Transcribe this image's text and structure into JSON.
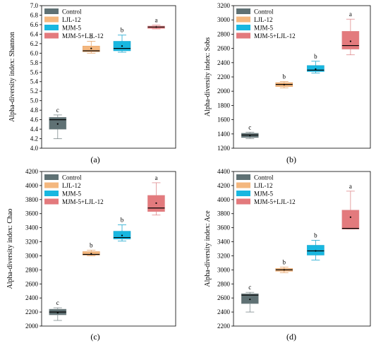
{
  "colors": {
    "Control": "#5f7174",
    "LJL-12": "#f4b77e",
    "MJM-5": "#18b7e0",
    "MJM-5+LJL-12": "#e37a7d",
    "whisker": {
      "Control": "#7f8b8d",
      "LJL-12": "#e7a56a",
      "MJM-5": "#1aa7cf",
      "MJM-5+LJL-12": "#df8b8e"
    }
  },
  "chart_data": [
    {
      "type": "box",
      "panel_label": "(a)",
      "ylabel": "Alpha-diversity index: Shannon",
      "ylim": [
        4.0,
        7.0
      ],
      "yticks": [
        "4.0",
        "4.2",
        "4.4",
        "4.6",
        "4.8",
        "5.0",
        "5.2",
        "5.4",
        "5.6",
        "5.8",
        "6.0",
        "6.2",
        "6.4",
        "6.6",
        "6.8",
        "7.0"
      ],
      "yticks_values": [
        4.0,
        4.2,
        4.4,
        4.6,
        4.8,
        5.0,
        5.2,
        5.4,
        5.6,
        5.8,
        6.0,
        6.2,
        6.4,
        6.6,
        6.8,
        7.0
      ],
      "legend": [
        "Control",
        "LJL-12",
        "MJM-5",
        "MJM-5+LJL-12"
      ],
      "series": [
        {
          "name": "Control",
          "min": 4.2,
          "q1": 4.4,
          "median": 4.6,
          "q3": 4.65,
          "max": 4.7,
          "mean": 4.51,
          "sig": "c"
        },
        {
          "name": "LJL-12",
          "min": 6.0,
          "q1": 6.03,
          "median": 6.05,
          "q3": 6.15,
          "max": 6.25,
          "mean": 6.1,
          "sig": "b"
        },
        {
          "name": "MJM-5",
          "min": 6.02,
          "q1": 6.05,
          "median": 6.1,
          "q3": 6.25,
          "max": 6.38,
          "mean": 6.15,
          "sig": "b"
        },
        {
          "name": "MJM-5+LJL-12",
          "min": 6.51,
          "q1": 6.52,
          "median": 6.55,
          "q3": 6.57,
          "max": 6.59,
          "mean": 6.55,
          "sig": "a"
        }
      ]
    },
    {
      "type": "box",
      "panel_label": "(b)",
      "ylabel": "Alpha-diversity index: Sobs",
      "ylim": [
        1200,
        3200
      ],
      "yticks": [
        "1200",
        "1400",
        "1600",
        "1800",
        "2000",
        "2200",
        "2400",
        "2600",
        "2800",
        "3000",
        "3200"
      ],
      "yticks_values": [
        1200,
        1400,
        1600,
        1800,
        2000,
        2200,
        2400,
        2600,
        2800,
        3000,
        3200
      ],
      "legend": [
        "Control",
        "LJL-12",
        "MJM-5",
        "MJM-5+LJL-12"
      ],
      "series": [
        {
          "name": "Control",
          "min": 1335,
          "q1": 1350,
          "median": 1385,
          "q3": 1410,
          "max": 1425,
          "mean": 1378,
          "sig": "c"
        },
        {
          "name": "LJL-12",
          "min": 2045,
          "q1": 2065,
          "median": 2095,
          "q3": 2120,
          "max": 2135,
          "mean": 2092,
          "sig": "b"
        },
        {
          "name": "MJM-5",
          "min": 2255,
          "q1": 2275,
          "median": 2295,
          "q3": 2360,
          "max": 2420,
          "mean": 2310,
          "sig": "b"
        },
        {
          "name": "MJM-5+LJL-12",
          "min": 2510,
          "q1": 2590,
          "median": 2640,
          "q3": 2840,
          "max": 3010,
          "mean": 2700,
          "sig": "a"
        }
      ]
    },
    {
      "type": "box",
      "panel_label": "(c)",
      "ylabel": "Alpha-diversity index: Chao",
      "ylim": [
        2000,
        4200
      ],
      "yticks": [
        "2000",
        "2200",
        "2400",
        "2600",
        "2800",
        "3000",
        "3200",
        "3400",
        "3600",
        "3800",
        "4000",
        "4200"
      ],
      "yticks_values": [
        2000,
        2200,
        2400,
        2600,
        2800,
        3000,
        3200,
        3400,
        3600,
        3800,
        4000,
        4200
      ],
      "legend": [
        "Control",
        "LJL-12",
        "MJM-5",
        "MJM-5+LJL-12"
      ],
      "series": [
        {
          "name": "Control",
          "min": 2080,
          "q1": 2160,
          "median": 2200,
          "q3": 2240,
          "max": 2260,
          "mean": 2190,
          "sig": "c"
        },
        {
          "name": "LJL-12",
          "min": 3000,
          "q1": 3010,
          "median": 3020,
          "q3": 3060,
          "max": 3080,
          "mean": 3030,
          "sig": "b"
        },
        {
          "name": "MJM-5",
          "min": 3210,
          "q1": 3240,
          "median": 3260,
          "q3": 3350,
          "max": 3440,
          "mean": 3290,
          "sig": "b"
        },
        {
          "name": "MJM-5+LJL-12",
          "min": 3580,
          "q1": 3630,
          "median": 3680,
          "q3": 3860,
          "max": 4040,
          "mean": 3750,
          "sig": "a"
        }
      ]
    },
    {
      "type": "box",
      "panel_label": "(d)",
      "ylabel": "Alpha-diversity index: Ace",
      "ylim": [
        2200,
        4400
      ],
      "yticks": [
        "2200",
        "2400",
        "2600",
        "2800",
        "3000",
        "3200",
        "3400",
        "3600",
        "3800",
        "4000",
        "4200",
        "4400"
      ],
      "yticks_values": [
        2200,
        2400,
        2600,
        2800,
        3000,
        3200,
        3400,
        3600,
        3800,
        4000,
        4200,
        4400
      ],
      "legend": [
        "Control",
        "LJL-12",
        "MJM-5",
        "MJM-5+LJL-12"
      ],
      "series": [
        {
          "name": "Control",
          "min": 2400,
          "q1": 2520,
          "median": 2640,
          "q3": 2660,
          "max": 2680,
          "mean": 2580,
          "sig": "c"
        },
        {
          "name": "LJL-12",
          "min": 2960,
          "q1": 2980,
          "median": 3000,
          "q3": 3020,
          "max": 3040,
          "mean": 3000,
          "sig": "b"
        },
        {
          "name": "MJM-5",
          "min": 3140,
          "q1": 3210,
          "median": 3270,
          "q3": 3350,
          "max": 3420,
          "mean": 3270,
          "sig": "b"
        },
        {
          "name": "MJM-5+LJL-12",
          "min": 3580,
          "q1": 3580,
          "median": 3590,
          "q3": 3850,
          "max": 4120,
          "mean": 3750,
          "sig": "a"
        }
      ]
    }
  ]
}
